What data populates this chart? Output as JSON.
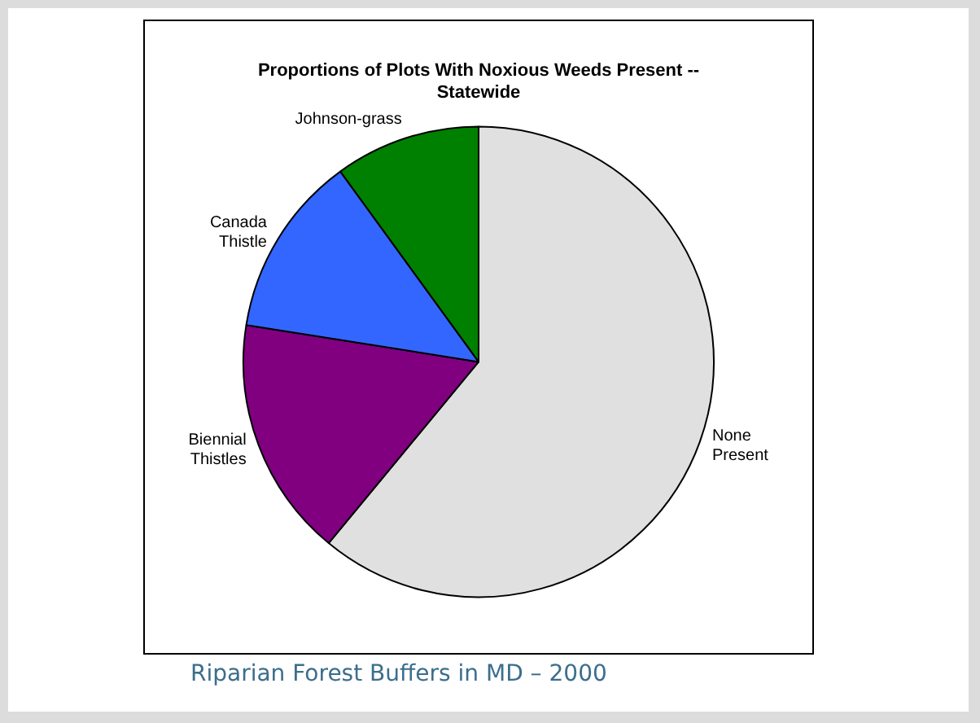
{
  "chart_data": {
    "type": "pie",
    "title": "Proportions of Plots With Noxious Weeds Present -- Statewide",
    "categories": [
      "None Present",
      "Biennial Thistles",
      "Canada Thistle",
      "Johnson-grass"
    ],
    "values": [
      61,
      16.5,
      12.5,
      10
    ],
    "colors": [
      "#e0e0e0",
      "#800080",
      "#3366ff",
      "#008000"
    ],
    "legend": false,
    "annotations": [
      "Riparian Forest Buffers in MD – 2000"
    ]
  }
}
